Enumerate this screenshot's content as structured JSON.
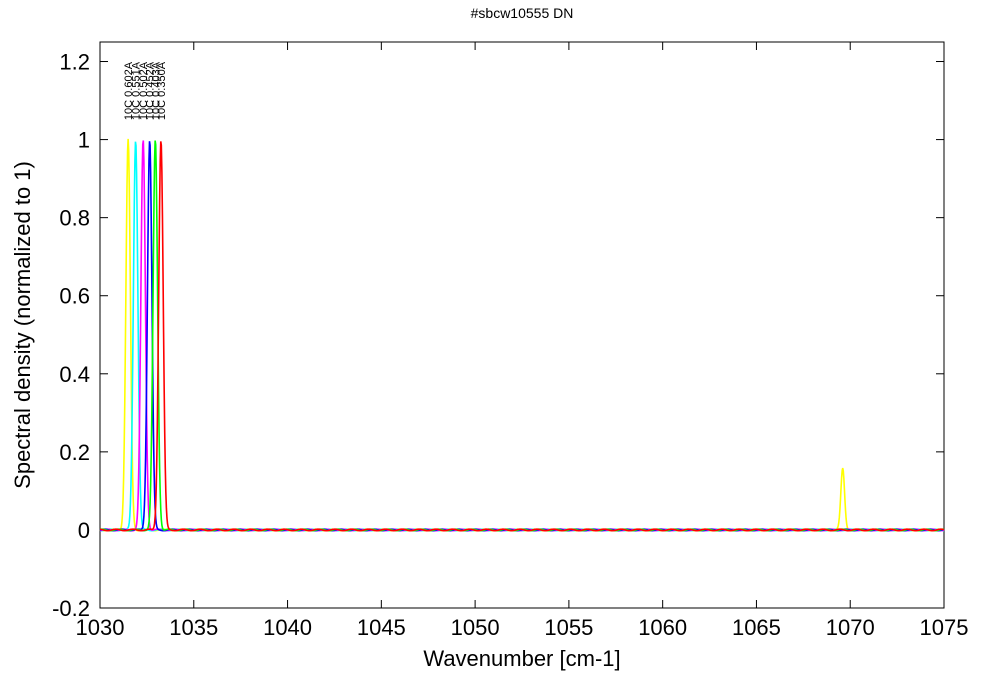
{
  "chart_data": {
    "type": "line",
    "title": "#sbcw10555 DN",
    "xlabel": "Wavenumber [cm-1]",
    "ylabel": "Spectral density (normalized to 1)",
    "xlim": [
      1030,
      1075
    ],
    "ylim": [
      -0.2,
      1.25
    ],
    "xticks": [
      1030,
      1035,
      1040,
      1045,
      1050,
      1055,
      1060,
      1065,
      1070,
      1075
    ],
    "xtick_labels": [
      "1030",
      "1035",
      "1040",
      "1045",
      "1050",
      "1055",
      "1060",
      "1065",
      "1070",
      "1075"
    ],
    "yticks": [
      -0.2,
      0,
      0.2,
      0.4,
      0.6,
      0.8,
      1,
      1.2
    ],
    "ytick_labels": [
      "-0.2",
      "0",
      "0.2",
      "0.4",
      "0.6",
      "0.8",
      "1",
      "1.2"
    ],
    "grid": false,
    "legend": "none",
    "series": [
      {
        "name": "10C 0.602A",
        "color": "#ffff00",
        "center": 1031.5,
        "width": 0.12,
        "secondary_peak": {
          "center": 1069.6,
          "height": 0.16,
          "width": 0.1
        }
      },
      {
        "name": "10C 0.551A",
        "color": "#00ffff",
        "center": 1031.9,
        "width": 0.12
      },
      {
        "name": "10C 0.502A",
        "color": "#ff00ff",
        "center": 1032.3,
        "width": 0.12
      },
      {
        "name": "10C 0.452A",
        "color": "#0000ff",
        "center": 1032.65,
        "width": 0.12
      },
      {
        "name": "10C 0.403A",
        "color": "#00ff00",
        "center": 1032.95,
        "width": 0.12
      },
      {
        "name": "10C 0.350A",
        "color": "#ff0000",
        "center": 1033.25,
        "width": 0.12
      }
    ]
  }
}
